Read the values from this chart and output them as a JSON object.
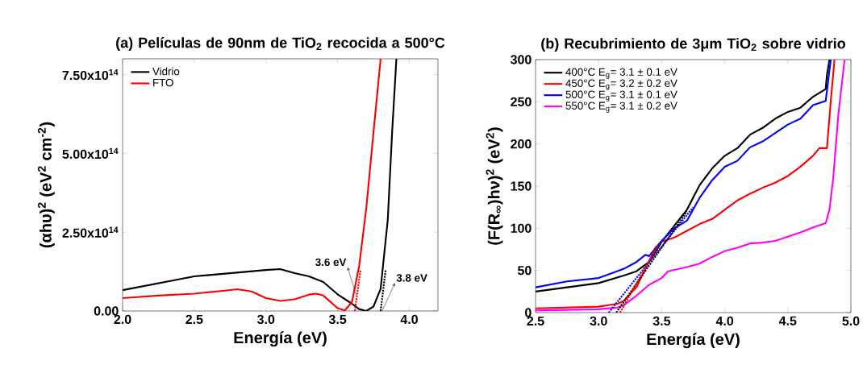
{
  "chart_data": [
    {
      "type": "line",
      "title": "(a) Películas de 90nm de TiO$_{2}$ recocida a 500°C",
      "xlabel": "Energía (eV)",
      "ylabel": "(αhυ)$^{2}$ (eV$^{2}$ cm$^{-2}$)",
      "xlim": [
        2.0,
        4.2
      ],
      "ylim": [
        0,
        800000000000000.0
      ],
      "xticks": [
        {
          "value": 2.0,
          "label": "2.0"
        },
        {
          "value": 2.5,
          "label": "2.5"
        },
        {
          "value": 3.0,
          "label": "3.0"
        },
        {
          "value": 3.5,
          "label": "3.5"
        },
        {
          "value": 4.0,
          "label": "4.0"
        }
      ],
      "yticks": [
        {
          "value": 0,
          "label": "0.00"
        },
        {
          "value": 250000000000000.0,
          "label": "2.50x10$^{14}$"
        },
        {
          "value": 500000000000000.0,
          "label": "5.00x10$^{14}$"
        },
        {
          "value": 750000000000000.0,
          "label": "7.50x10$^{14}$"
        }
      ],
      "legend": "top left",
      "series": [
        {
          "name": "Vidrio",
          "color": "#000000",
          "x": [
            2.0,
            2.5,
            3.0,
            3.1,
            3.2,
            3.3,
            3.4,
            3.5,
            3.6,
            3.65,
            3.7,
            3.75,
            3.8,
            3.85,
            3.88,
            3.91
          ],
          "values": [
            66000000000000.0,
            110000000000000.0,
            130000000000000.0,
            133000000000000.0,
            120000000000000.0,
            110000000000000.0,
            92000000000000.0,
            53000000000000.0,
            23000000000000.0,
            6000000000000.0,
            0,
            14000000000000.0,
            70000000000000.0,
            290000000000000.0,
            565000000000000.0,
            800000000000000.0
          ]
        },
        {
          "name": "FTO",
          "color": "#ff0000",
          "x": [
            2.0,
            2.25,
            2.5,
            2.7,
            2.8,
            2.9,
            3.0,
            3.1,
            3.2,
            3.3,
            3.35,
            3.4,
            3.5,
            3.55,
            3.6,
            3.65,
            3.7,
            3.75,
            3.8
          ],
          "values": [
            41000000000000.0,
            49000000000000.0,
            55000000000000.0,
            64000000000000.0,
            69000000000000.0,
            62000000000000.0,
            41000000000000.0,
            32000000000000.0,
            37000000000000.0,
            52000000000000.0,
            55000000000000.0,
            49000000000000.0,
            9000000000000.0,
            2000000000000.0,
            28000000000000.0,
            142000000000000.0,
            326000000000000.0,
            565000000000000.0,
            800000000000000.0
          ]
        },
        {
          "type": "line",
          "line_style": "dotted",
          "color": "#ff0000",
          "x": [
            3.62,
            3.66
          ],
          "values": [
            0,
            130000000000000.0
          ]
        },
        {
          "type": "line",
          "line_style": "dotted",
          "color": "#000000",
          "x": [
            3.8,
            3.835
          ],
          "values": [
            0,
            130000000000000.0
          ]
        }
      ],
      "annotations": [
        {
          "text": "3.6 eV",
          "x": 3.63,
          "y": 50000000000000.0
        },
        {
          "text": "3.8 eV",
          "x": 3.81,
          "y": 0
        }
      ]
    },
    {
      "type": "line",
      "title": "(b) Recubrimiento de 3μm TiO$_{2}$ sobre vidrio",
      "xlabel": "Energía (eV)",
      "ylabel": "(F(R$_{∞}$)hν)$^{2}$ (eV$^{2}$)",
      "xlim": [
        2.5,
        5.0
      ],
      "ylim": [
        0,
        300
      ],
      "xticks": [
        {
          "value": 2.5,
          "label": "2.5"
        },
        {
          "value": 3.0,
          "label": "3.0"
        },
        {
          "value": 3.5,
          "label": "3.5"
        },
        {
          "value": 4.0,
          "label": "4.0"
        },
        {
          "value": 4.5,
          "label": "4.5"
        },
        {
          "value": 5.0,
          "label": "5.0"
        }
      ],
      "yticks": [
        0,
        50,
        100,
        150,
        200,
        250,
        300
      ],
      "legend": "top left",
      "series": [
        {
          "name": "400°C E$_{g}$= 3.1 ± 0.1 eV",
          "color": "#000000",
          "x": [
            2.5,
            2.75,
            3.0,
            3.2,
            3.3,
            3.4,
            3.5,
            3.6,
            3.7,
            3.8,
            3.9,
            4.0,
            4.1,
            4.2,
            4.3,
            4.4,
            4.5,
            4.6,
            4.7,
            4.8,
            4.81,
            4.83
          ],
          "values": [
            25,
            30,
            35,
            44,
            49,
            60,
            84,
            103,
            122,
            151,
            171,
            186,
            195,
            211,
            219,
            230,
            238,
            243,
            256,
            265,
            282,
            300
          ]
        },
        {
          "name": "450°C E$_{g}$= 3.2 ± 0.2 eV",
          "color": "#ff0000",
          "x": [
            2.5,
            3.0,
            3.15,
            3.2,
            3.3,
            3.4,
            3.45,
            3.5,
            3.6,
            3.7,
            3.8,
            3.9,
            4.0,
            4.1,
            4.2,
            4.3,
            4.4,
            4.5,
            4.6,
            4.7,
            4.75,
            4.81,
            4.84,
            4.87
          ],
          "values": [
            5,
            7,
            10.5,
            14,
            30,
            61,
            77,
            84,
            89,
            97,
            105,
            111,
            122,
            133,
            141,
            148,
            154,
            162,
            173,
            186,
            195,
            195,
            250,
            300
          ]
        },
        {
          "name": "500°C E$_{g}$= 3.1 ± 0.1 eV",
          "color": "#0000ff",
          "x": [
            2.5,
            2.75,
            3.0,
            3.2,
            3.3,
            3.37,
            3.4,
            3.5,
            3.6,
            3.7,
            3.8,
            3.9,
            4.0,
            4.1,
            4.2,
            4.3,
            4.4,
            4.5,
            4.6,
            4.7,
            4.8,
            4.82,
            4.84
          ],
          "values": [
            30,
            37,
            41,
            52,
            60,
            68.5,
            67,
            85,
            100,
            109,
            136,
            157,
            173,
            180,
            196,
            203,
            213,
            223,
            230,
            246,
            251,
            275,
            300
          ]
        },
        {
          "name": "550°C E$_{g}$= 3.1 ± 0.2 eV",
          "color": "#ff00ff",
          "x": [
            2.5,
            3.0,
            3.15,
            3.2,
            3.3,
            3.4,
            3.5,
            3.55,
            3.7,
            3.8,
            3.9,
            4.0,
            4.1,
            4.2,
            4.3,
            4.4,
            4.5,
            4.6,
            4.7,
            4.8,
            4.83,
            4.86,
            4.9,
            4.95
          ],
          "values": [
            2.5,
            4,
            6,
            9,
            20,
            33,
            41,
            49,
            54,
            58,
            66,
            73,
            77,
            82,
            83,
            85,
            90,
            95,
            101,
            106,
            122,
            160,
            234,
            300
          ]
        },
        {
          "type": "line",
          "line_style": "dotted",
          "color": "#0000ff",
          "x": [
            3.08,
            3.75
          ],
          "values": [
            0,
            125
          ]
        },
        {
          "type": "line",
          "line_style": "dotted",
          "color": "#000000",
          "x": [
            3.14,
            3.7
          ],
          "values": [
            0,
            120
          ]
        },
        {
          "type": "line",
          "line_style": "dotted",
          "color": "#ff0000",
          "x": [
            3.17,
            3.47
          ],
          "values": [
            0,
            80
          ]
        }
      ]
    }
  ]
}
